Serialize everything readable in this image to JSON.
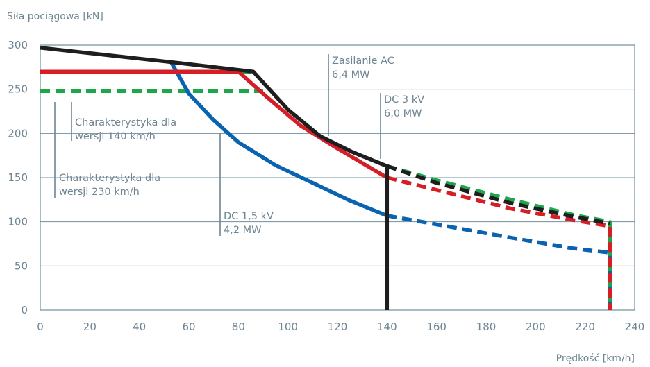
{
  "chart_data": {
    "type": "line",
    "ylabel": "Siła pociągowa [kN]",
    "xlabel": "Prędkość [km/h]",
    "xlim": [
      0,
      240
    ],
    "ylim": [
      0,
      300
    ],
    "x_ticks": [
      0,
      20,
      40,
      60,
      80,
      100,
      120,
      140,
      160,
      180,
      200,
      220,
      240
    ],
    "y_ticks": [
      0,
      50,
      100,
      150,
      200,
      250,
      300
    ],
    "grid": "horizontal",
    "colors": {
      "black": "#1e1e1e",
      "red": "#d51e26",
      "green": "#1ea64b",
      "blue": "#0a63b0",
      "annotation": "#6e8592",
      "frame": "#6f8fa0"
    },
    "series": [
      {
        "color": "black",
        "solid": [
          [
            0,
            297
          ],
          [
            52,
            281
          ],
          [
            86,
            270
          ],
          [
            100,
            227
          ],
          [
            113,
            197
          ],
          [
            126,
            179
          ],
          [
            140,
            163
          ],
          [
            140,
            0
          ]
        ],
        "dashed": [
          [
            140,
            163
          ],
          [
            160,
            144
          ],
          [
            190,
            121
          ],
          [
            215,
            106
          ],
          [
            230,
            98
          ]
        ]
      },
      {
        "color": "red",
        "solid": [
          [
            0,
            270
          ],
          [
            80,
            270
          ],
          [
            92,
            240
          ],
          [
            105,
            209
          ],
          [
            120,
            183
          ],
          [
            140,
            150
          ]
        ],
        "dashed": [
          [
            140,
            150
          ],
          [
            160,
            136
          ],
          [
            190,
            115
          ],
          [
            215,
            102
          ],
          [
            230,
            95
          ],
          [
            230,
            0
          ]
        ]
      },
      {
        "color": "green",
        "solid": [
          [
            0,
            270
          ],
          [
            85,
            270
          ]
        ],
        "dashed": [
          [
            0,
            248
          ],
          [
            90,
            248
          ]
        ]
      },
      {
        "color": "green-dash",
        "dashed": [
          [
            140,
            163
          ],
          [
            160,
            147
          ],
          [
            190,
            125
          ],
          [
            215,
            108
          ],
          [
            230,
            100
          ],
          [
            230,
            0
          ]
        ]
      },
      {
        "color": "blue",
        "solid": [
          [
            53,
            280
          ],
          [
            60,
            245
          ],
          [
            70,
            215
          ],
          [
            80,
            190
          ],
          [
            95,
            164
          ],
          [
            110,
            144
          ],
          [
            125,
            124
          ],
          [
            140,
            107
          ]
        ],
        "dashed": [
          [
            140,
            107
          ],
          [
            160,
            97
          ],
          [
            190,
            82
          ],
          [
            215,
            70
          ],
          [
            230,
            65
          ],
          [
            230,
            0
          ]
        ]
      }
    ],
    "annotations": [
      {
        "lines": [
          "Zasilanie AC",
          "6,4 MW"
        ],
        "anchor": [
          115,
          205
        ]
      },
      {
        "lines": [
          "DC 3 kV",
          "6,0 MW"
        ],
        "anchor": [
          136,
          153
        ]
      },
      {
        "lines": [
          "DC 1,5 kV",
          "4,2 MW"
        ],
        "anchor": [
          72,
          195
        ]
      },
      {
        "lines": [
          "Charakterystyka  dla",
          "wersji 140 km/h"
        ],
        "anchor": [
          12,
          264
        ]
      },
      {
        "lines": [
          "Charakterystyka  dla",
          "wersji 230 km/h"
        ],
        "anchor": [
          5,
          244
        ]
      }
    ]
  }
}
